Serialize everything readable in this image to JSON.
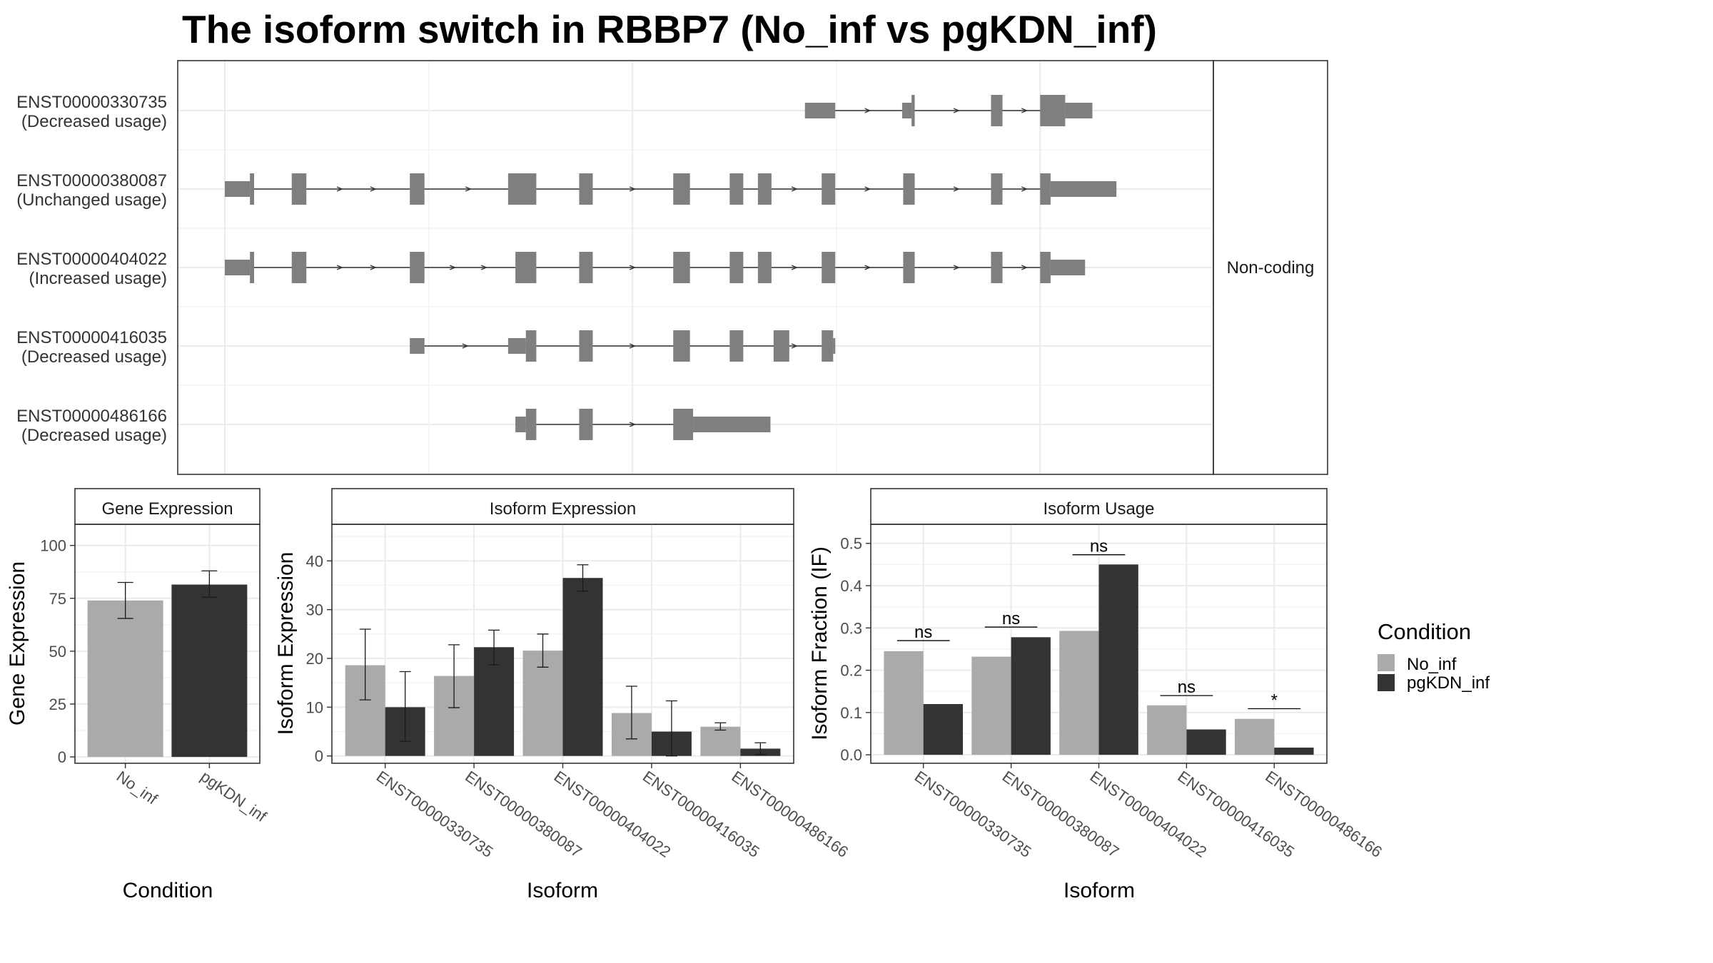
{
  "title": "The isoform switch in RBBP7 (No_inf vs pgKDN_inf)",
  "legend": {
    "title": "Condition",
    "items": [
      {
        "label": "No_inf",
        "color": "#aaaaaa"
      },
      {
        "label": "pgKDN_inf",
        "color": "#333333"
      }
    ]
  },
  "structure": {
    "strip_label": "Non-coding",
    "x_range": [
      0,
      900
    ],
    "exon_color": "#7f7f7f",
    "transcripts": [
      {
        "id": "ENST00000330735",
        "usage": "(Decreased usage)",
        "exons": [
          [
            555,
            584,
            "n"
          ],
          [
            648,
            657,
            "n"
          ],
          [
            657,
            660,
            "w"
          ],
          [
            733,
            744,
            "w"
          ],
          [
            780,
            804,
            "w"
          ],
          [
            804,
            830,
            "n"
          ]
        ],
        "arrows": [
          615,
          700,
          765
        ]
      },
      {
        "id": "ENST00000380087",
        "usage": "(Unchanged usage)",
        "exons": [
          [
            0,
            24,
            "n"
          ],
          [
            24,
            28,
            "w"
          ],
          [
            64,
            78,
            "w"
          ],
          [
            177,
            191,
            "w"
          ],
          [
            271,
            298,
            "w"
          ],
          [
            339,
            352,
            "w"
          ],
          [
            429,
            445,
            "w"
          ],
          [
            483,
            496,
            "w"
          ],
          [
            510,
            523,
            "w"
          ],
          [
            571,
            584,
            "w"
          ],
          [
            649,
            660,
            "w"
          ],
          [
            733,
            744,
            "w"
          ],
          [
            780,
            790,
            "w"
          ],
          [
            790,
            853,
            "n"
          ]
        ],
        "arrows": [
          110,
          142,
          233,
          390,
          545,
          615,
          700,
          765
        ]
      },
      {
        "id": "ENST00000404022",
        "usage": "(Increased usage)",
        "exons": [
          [
            0,
            24,
            "n"
          ],
          [
            24,
            28,
            "w"
          ],
          [
            64,
            78,
            "w"
          ],
          [
            177,
            191,
            "w"
          ],
          [
            278,
            298,
            "w"
          ],
          [
            339,
            352,
            "w"
          ],
          [
            429,
            445,
            "w"
          ],
          [
            483,
            496,
            "w"
          ],
          [
            510,
            523,
            "w"
          ],
          [
            571,
            584,
            "w"
          ],
          [
            649,
            660,
            "w"
          ],
          [
            733,
            744,
            "w"
          ],
          [
            780,
            790,
            "w"
          ],
          [
            790,
            823,
            "n"
          ]
        ],
        "arrows": [
          110,
          142,
          218,
          248,
          390,
          545,
          615,
          700,
          765
        ]
      },
      {
        "id": "ENST00000416035",
        "usage": "(Decreased usage)",
        "exons": [
          [
            177,
            191,
            "n"
          ],
          [
            271,
            288,
            "n"
          ],
          [
            288,
            298,
            "w"
          ],
          [
            339,
            352,
            "w"
          ],
          [
            429,
            445,
            "w"
          ],
          [
            483,
            496,
            "w"
          ],
          [
            525,
            540,
            "w"
          ],
          [
            571,
            582,
            "w"
          ],
          [
            582,
            584,
            "n"
          ]
        ],
        "arrows": [
          230,
          390,
          545
        ]
      },
      {
        "id": "ENST00000486166",
        "usage": "(Decreased usage)",
        "exons": [
          [
            278,
            288,
            "n"
          ],
          [
            288,
            298,
            "w"
          ],
          [
            339,
            352,
            "w"
          ],
          [
            429,
            448,
            "w"
          ],
          [
            448,
            522,
            "n"
          ]
        ],
        "arrows": [
          390
        ]
      }
    ]
  },
  "chart_data": [
    {
      "type": "bar",
      "title": "Gene Expression",
      "xlabel": "Condition",
      "ylabel": "Gene Expression",
      "categories": [
        "No_inf",
        "pgKDN_inf"
      ],
      "values": [
        74,
        81.5
      ],
      "errors": [
        [
          65.5,
          82.5
        ],
        [
          75.5,
          88
        ]
      ],
      "ylim": [
        -3,
        110
      ],
      "yticks": [
        0,
        25,
        50,
        75,
        100
      ]
    },
    {
      "type": "bar",
      "title": "Isoform Expression",
      "xlabel": "Isoform",
      "ylabel": "Isoform Expression",
      "categories": [
        "ENST00000330735",
        "ENST00000380087",
        "ENST00000404022",
        "ENST00000416035",
        "ENST00000486166"
      ],
      "series": [
        {
          "name": "No_inf",
          "values": [
            18.6,
            16.4,
            21.6,
            8.8,
            6.0
          ],
          "errors": [
            [
              11.5,
              26
            ],
            [
              9.9,
              22.8
            ],
            [
              18.2,
              25
            ],
            [
              3.5,
              14.3
            ],
            [
              5.3,
              6.8
            ]
          ]
        },
        {
          "name": "pgKDN_inf",
          "values": [
            10.0,
            22.3,
            36.5,
            5.0,
            1.5
          ],
          "errors": [
            [
              3,
              17.3
            ],
            [
              18.7,
              25.8
            ],
            [
              33.8,
              39.2
            ],
            [
              0,
              11.3
            ],
            [
              0.3,
              2.7
            ]
          ]
        }
      ],
      "ylim": [
        -1.5,
        47.5
      ],
      "yticks": [
        0,
        10,
        20,
        30,
        40
      ]
    },
    {
      "type": "bar",
      "title": "Isoform Usage",
      "xlabel": "Isoform",
      "ylabel": "Isoform Fraction (IF)",
      "categories": [
        "ENST00000330735",
        "ENST00000380087",
        "ENST00000404022",
        "ENST00000416035",
        "ENST00000486166"
      ],
      "series": [
        {
          "name": "No_inf",
          "values": [
            0.245,
            0.232,
            0.293,
            0.117,
            0.085
          ]
        },
        {
          "name": "pgKDN_inf",
          "values": [
            0.12,
            0.278,
            0.45,
            0.06,
            0.017
          ]
        }
      ],
      "significance": [
        "ns",
        "ns",
        "ns",
        "ns",
        "*"
      ],
      "significance_y": [
        0.27,
        0.302,
        0.473,
        0.14,
        0.109
      ],
      "ylim": [
        -0.02,
        0.545
      ],
      "yticks": [
        0.0,
        0.1,
        0.2,
        0.3,
        0.4,
        0.5
      ]
    }
  ]
}
